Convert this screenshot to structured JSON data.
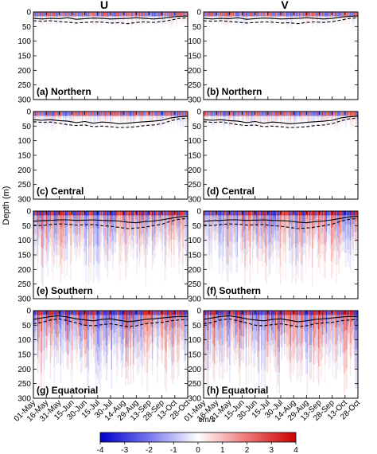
{
  "chart_data": {
    "type": "heatmap",
    "column_titles": [
      "U",
      "V"
    ],
    "ylabel": "Depth (m)",
    "y_ticks": [
      0,
      50,
      100,
      150,
      200,
      250,
      300
    ],
    "ylim": [
      300,
      0
    ],
    "x_ticks": [
      "01-May",
      "16-May",
      "31-May",
      "15-Jun",
      "30-Jun",
      "15-Jul",
      "30-Jul",
      "14-Aug",
      "29-Aug",
      "13-Sep",
      "28-Sep",
      "13-Oct",
      "28-Oct"
    ],
    "colorbar": {
      "units": "cm/s",
      "ticks": [
        -4,
        -3,
        -2,
        -1,
        0,
        1,
        2,
        3,
        4
      ],
      "range": [
        -4,
        4
      ],
      "colormap": [
        "#0000cc",
        "#ffffff",
        "#cc0000"
      ]
    },
    "panels": [
      {
        "label": "(a) Northern",
        "component": "U",
        "region": "Northern",
        "intensity": 0.35,
        "penetration_m": 60,
        "solid_depth_m": [
          22,
          24,
          22,
          23,
          20,
          25,
          23,
          21,
          22,
          24,
          23,
          22,
          20,
          22,
          24,
          22,
          18,
          15,
          14
        ],
        "dashed_depth_m": [
          30,
          32,
          30,
          33,
          35,
          38,
          36,
          34,
          35,
          38,
          37,
          40,
          36,
          34,
          36,
          33,
          28,
          22,
          20
        ]
      },
      {
        "label": "(b) Northern",
        "component": "V",
        "region": "Northern",
        "intensity": 0.35,
        "penetration_m": 60,
        "solid_depth_m": [
          22,
          24,
          22,
          23,
          20,
          25,
          23,
          21,
          22,
          24,
          23,
          22,
          20,
          22,
          24,
          22,
          18,
          15,
          14
        ],
        "dashed_depth_m": [
          30,
          32,
          30,
          33,
          35,
          38,
          36,
          34,
          35,
          38,
          37,
          40,
          36,
          34,
          36,
          33,
          28,
          22,
          20
        ]
      },
      {
        "label": "(c) Central",
        "component": "U",
        "region": "Central",
        "intensity": 0.4,
        "penetration_m": 70,
        "solid_depth_m": [
          28,
          30,
          28,
          31,
          33,
          38,
          34,
          40,
          36,
          38,
          42,
          40,
          37,
          35,
          33,
          30,
          22,
          18,
          16
        ],
        "dashed_depth_m": [
          35,
          37,
          36,
          40,
          45,
          48,
          46,
          52,
          50,
          52,
          55,
          54,
          52,
          48,
          46,
          42,
          32,
          25,
          22
        ]
      },
      {
        "label": "(d) Central",
        "component": "V",
        "region": "Central",
        "intensity": 0.4,
        "penetration_m": 70,
        "solid_depth_m": [
          28,
          30,
          28,
          31,
          33,
          38,
          34,
          40,
          36,
          38,
          42,
          40,
          37,
          35,
          33,
          30,
          22,
          18,
          16
        ],
        "dashed_depth_m": [
          35,
          37,
          36,
          40,
          45,
          48,
          46,
          52,
          50,
          52,
          55,
          54,
          52,
          48,
          46,
          42,
          32,
          25,
          22
        ]
      },
      {
        "label": "(e) Southern",
        "component": "U",
        "region": "Southern",
        "intensity": 0.75,
        "penetration_m": 260,
        "solid_depth_m": [
          35,
          33,
          32,
          30,
          30,
          32,
          31,
          30,
          32,
          33,
          34,
          38,
          40,
          36,
          34,
          30,
          25,
          20,
          18
        ],
        "dashed_depth_m": [
          48,
          50,
          46,
          44,
          45,
          48,
          47,
          46,
          50,
          52,
          56,
          60,
          58,
          55,
          50,
          45,
          35,
          28,
          25
        ]
      },
      {
        "label": "(f) Southern",
        "component": "V",
        "region": "Southern",
        "intensity": 0.75,
        "penetration_m": 260,
        "solid_depth_m": [
          35,
          33,
          32,
          30,
          30,
          32,
          31,
          30,
          32,
          33,
          34,
          38,
          40,
          36,
          34,
          30,
          25,
          20,
          18
        ],
        "dashed_depth_m": [
          48,
          50,
          46,
          44,
          45,
          48,
          47,
          46,
          50,
          52,
          56,
          60,
          58,
          55,
          50,
          45,
          35,
          28,
          25
        ]
      },
      {
        "label": "(g) Equatorial",
        "component": "U",
        "region": "Equatorial",
        "intensity": 0.9,
        "penetration_m": 290,
        "solid_depth_m": [
          30,
          25,
          20,
          18,
          22,
          28,
          32,
          35,
          30,
          28,
          33,
          38,
          35,
          30,
          28,
          25,
          22,
          20,
          20
        ],
        "dashed_depth_m": [
          45,
          40,
          32,
          28,
          35,
          42,
          50,
          52,
          48,
          45,
          50,
          55,
          52,
          45,
          42,
          40,
          35,
          32,
          30
        ]
      },
      {
        "label": "(h) Equatorial",
        "component": "V",
        "region": "Equatorial",
        "intensity": 0.9,
        "penetration_m": 290,
        "solid_depth_m": [
          30,
          25,
          20,
          18,
          22,
          28,
          32,
          35,
          30,
          28,
          33,
          38,
          35,
          30,
          28,
          25,
          22,
          20,
          20
        ],
        "dashed_depth_m": [
          45,
          40,
          32,
          28,
          35,
          42,
          50,
          52,
          48,
          45,
          50,
          55,
          52,
          45,
          42,
          40,
          35,
          32,
          30
        ]
      }
    ]
  }
}
